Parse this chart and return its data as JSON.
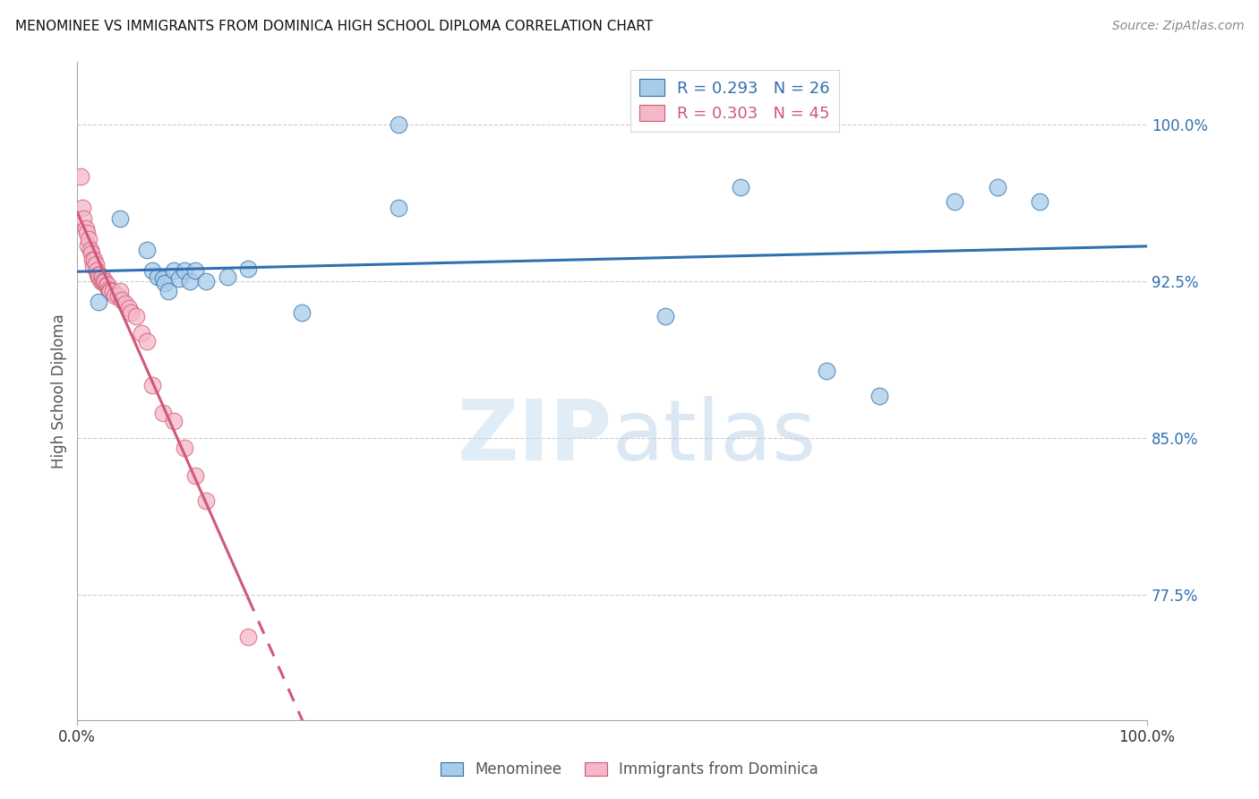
{
  "title": "MENOMINEE VS IMMIGRANTS FROM DOMINICA HIGH SCHOOL DIPLOMA CORRELATION CHART",
  "source": "Source: ZipAtlas.com",
  "ylabel": "High School Diploma",
  "yticks": [
    0.775,
    0.85,
    0.925,
    1.0
  ],
  "ytick_labels": [
    "77.5%",
    "85.0%",
    "92.5%",
    "100.0%"
  ],
  "xlim": [
    0.0,
    1.0
  ],
  "ylim": [
    0.715,
    1.03
  ],
  "legend_1_label": "R = 0.293   N = 26",
  "legend_2_label": "R = 0.303   N = 45",
  "watermark": "ZIPatlas",
  "blue_color": "#a8cce8",
  "pink_color": "#f4b8c8",
  "line_blue": "#3070b0",
  "line_pink": "#d05878",
  "menominee_x": [
    0.02,
    0.04,
    0.065,
    0.07,
    0.075,
    0.08,
    0.082,
    0.085,
    0.09,
    0.095,
    0.1,
    0.105,
    0.11,
    0.12,
    0.14,
    0.16,
    0.21,
    0.3,
    0.55,
    0.62,
    0.7,
    0.75,
    0.82,
    0.86,
    0.9,
    0.3
  ],
  "menominee_y": [
    0.915,
    0.955,
    0.94,
    0.93,
    0.927,
    0.926,
    0.924,
    0.92,
    0.93,
    0.926,
    0.93,
    0.925,
    0.93,
    0.925,
    0.927,
    0.931,
    0.91,
    1.0,
    0.908,
    0.97,
    0.882,
    0.87,
    0.963,
    0.97,
    0.963,
    0.96
  ],
  "dominica_x": [
    0.003,
    0.005,
    0.006,
    0.008,
    0.009,
    0.01,
    0.011,
    0.012,
    0.013,
    0.014,
    0.015,
    0.016,
    0.017,
    0.018,
    0.019,
    0.02,
    0.021,
    0.022,
    0.023,
    0.024,
    0.025,
    0.026,
    0.027,
    0.028,
    0.029,
    0.03,
    0.031,
    0.033,
    0.035,
    0.038,
    0.04,
    0.042,
    0.045,
    0.048,
    0.05,
    0.055,
    0.06,
    0.065,
    0.07,
    0.08,
    0.09,
    0.1,
    0.11,
    0.12,
    0.16
  ],
  "dominica_y": [
    0.975,
    0.96,
    0.955,
    0.95,
    0.948,
    0.942,
    0.945,
    0.94,
    0.938,
    0.935,
    0.932,
    0.935,
    0.933,
    0.93,
    0.928,
    0.928,
    0.926,
    0.925,
    0.927,
    0.925,
    0.924,
    0.925,
    0.923,
    0.923,
    0.921,
    0.92,
    0.92,
    0.92,
    0.918,
    0.918,
    0.92,
    0.916,
    0.914,
    0.912,
    0.91,
    0.908,
    0.9,
    0.896,
    0.875,
    0.862,
    0.858,
    0.845,
    0.832,
    0.82,
    0.755
  ]
}
